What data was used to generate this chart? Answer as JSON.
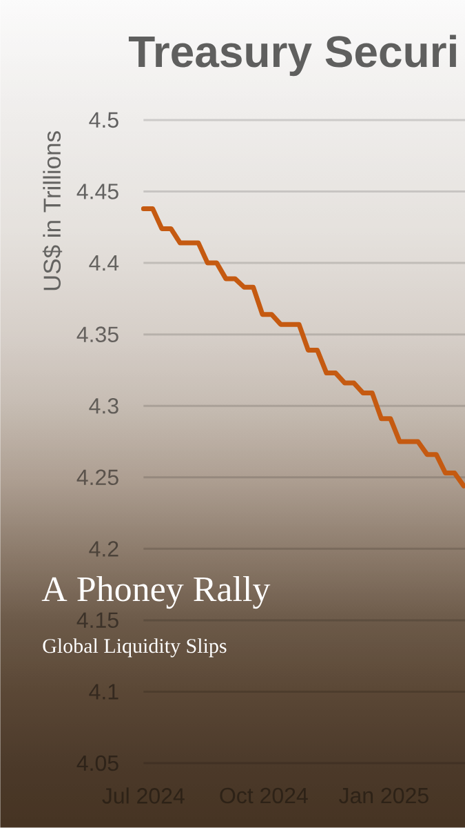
{
  "chart_data": {
    "type": "line",
    "title": "Treasury Securi",
    "ylabel": "US$ in Trillions",
    "annotations": [
      "A Phoney Rally",
      "Global Liquidity Slips"
    ],
    "x": [
      "2024-07-03",
      "2024-07-10",
      "2024-07-17",
      "2024-07-24",
      "2024-07-31",
      "2024-08-07",
      "2024-08-14",
      "2024-08-21",
      "2024-08-28",
      "2024-09-04",
      "2024-09-11",
      "2024-09-18",
      "2024-09-25",
      "2024-10-02",
      "2024-10-09",
      "2024-10-16",
      "2024-10-23",
      "2024-10-30",
      "2024-11-06",
      "2024-11-13",
      "2024-11-20",
      "2024-11-27",
      "2024-12-04",
      "2024-12-11",
      "2024-12-18",
      "2024-12-25",
      "2025-01-01",
      "2025-01-08",
      "2025-01-15",
      "2025-01-22",
      "2025-01-29",
      "2025-02-05",
      "2025-02-12",
      "2025-02-19",
      "2025-02-26",
      "2025-03-05"
    ],
    "series": [
      {
        "color": "#c55a11",
        "values": [
          4.438,
          4.438,
          4.424,
          4.424,
          4.414,
          4.414,
          4.414,
          4.4,
          4.4,
          4.389,
          4.389,
          4.383,
          4.383,
          4.364,
          4.364,
          4.357,
          4.357,
          4.357,
          4.339,
          4.339,
          4.323,
          4.323,
          4.316,
          4.316,
          4.309,
          4.309,
          4.291,
          4.291,
          4.275,
          4.275,
          4.275,
          4.266,
          4.266,
          4.253,
          4.253,
          4.244
        ]
      }
    ],
    "xlim": [
      "2024-07-03",
      "2025-03-06"
    ],
    "xticks": [
      {
        "value": "2024-07-03",
        "label": "Jul 2024"
      },
      {
        "value": "2024-10-03",
        "label": "Oct 2024"
      },
      {
        "value": "2025-01-03",
        "label": "Jan 2025"
      }
    ],
    "ylim": [
      4.05,
      4.5
    ],
    "yticks": [
      4.05,
      4.1,
      4.15,
      4.2,
      4.25,
      4.3,
      4.35,
      4.4,
      4.45,
      4.5
    ],
    "grid": "y"
  }
}
